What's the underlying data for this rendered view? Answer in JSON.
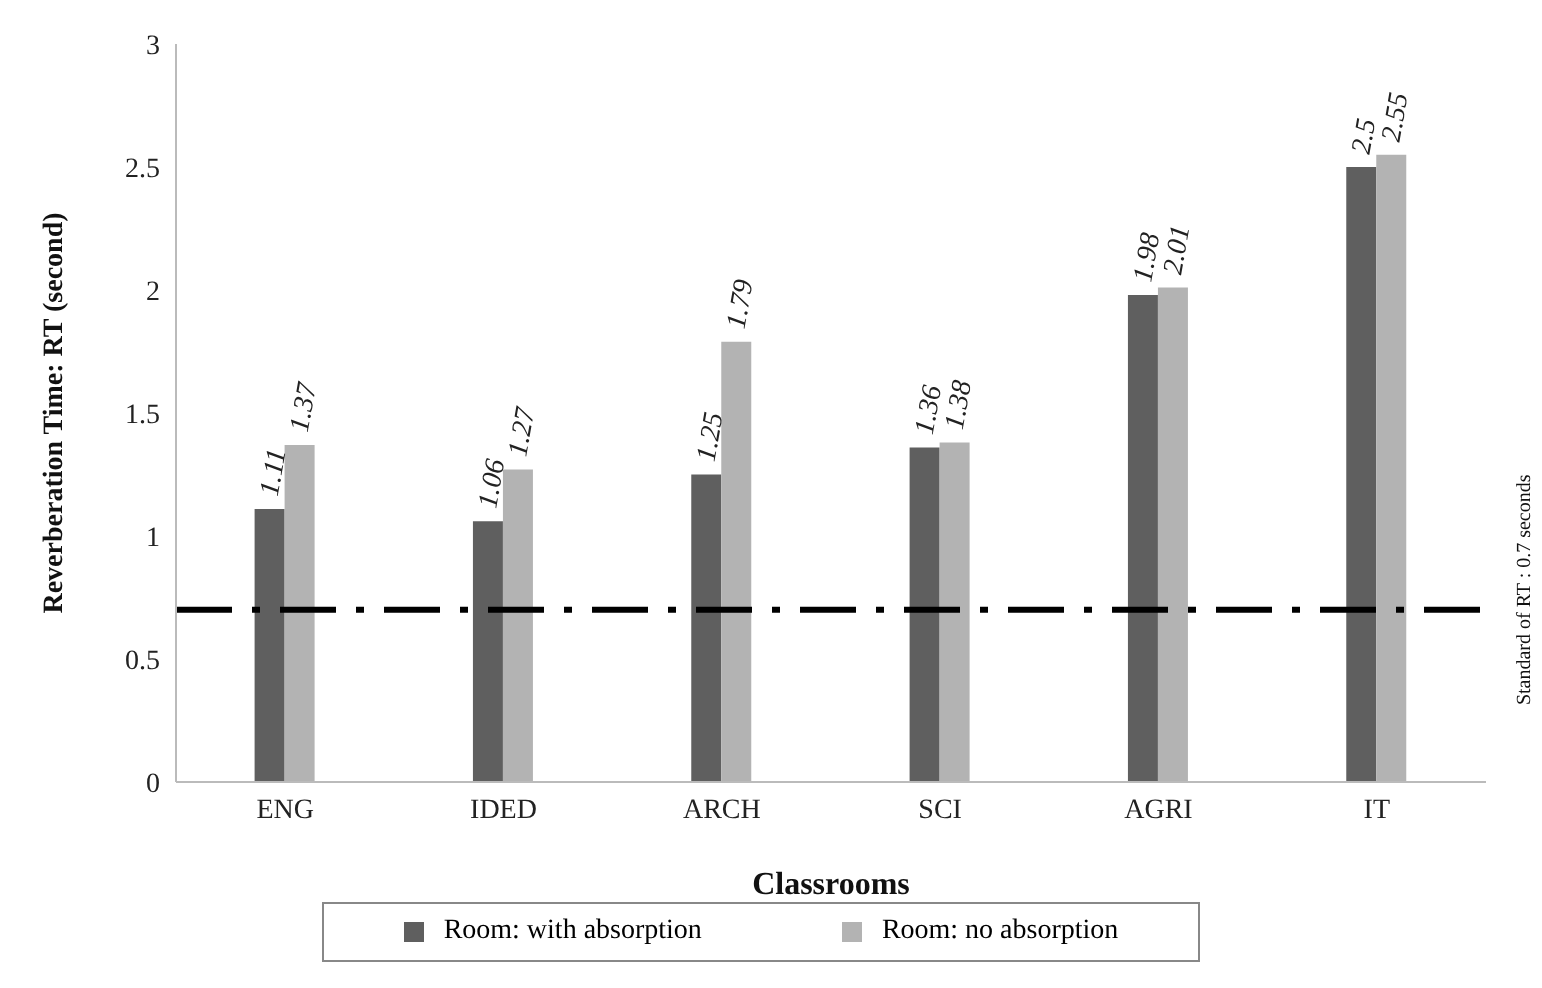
{
  "chart_data": {
    "type": "bar",
    "xlabel": "Classrooms",
    "ylabel": "Reverberation Time: RT (second)",
    "categories": [
      "ENG",
      "IDED",
      "ARCH",
      "SCI",
      "AGRI",
      "IT"
    ],
    "series": [
      {
        "name": "Room: with absorption",
        "color": "#5f5f5f",
        "values": [
          1.11,
          1.06,
          1.25,
          1.36,
          1.98,
          2.5
        ]
      },
      {
        "name": "Room: no absorption",
        "color": "#b3b3b3",
        "values": [
          1.37,
          1.27,
          1.79,
          1.38,
          2.01,
          2.55
        ]
      }
    ],
    "ylim": [
      0,
      3
    ],
    "yticks": [
      0,
      0.5,
      1,
      1.5,
      2,
      2.5,
      3
    ],
    "grid": false,
    "legend": "bottom",
    "data_labels": true,
    "ref_lines": [
      {
        "axis": "y",
        "value": 0.7,
        "label": "Standard of RT : 0.7 seconds",
        "color": "#000000",
        "line_style": "dashed"
      }
    ]
  }
}
